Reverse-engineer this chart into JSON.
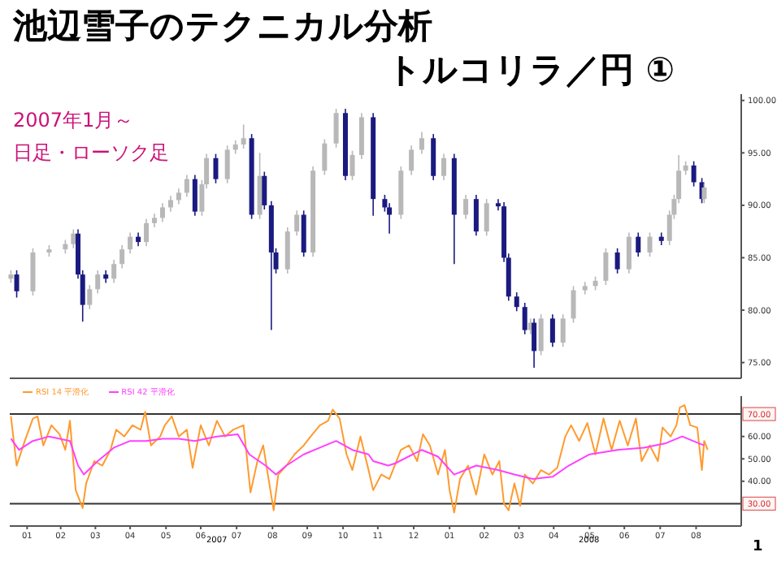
{
  "chart_data": [
    {
      "type": "candlestick",
      "title": "池辺雪子のテクニカル分析",
      "subtitle": "トルコリラ／円 ①",
      "annotations": [
        "2007年1月～",
        "日足・ローソク足"
      ],
      "x": [
        "2007-01-02",
        "2007-01-07",
        "2007-01-21",
        "2007-02-04",
        "2007-02-18",
        "2007-02-25",
        "2007-03-01",
        "2007-03-05",
        "2007-03-11",
        "2007-03-18",
        "2007-03-25",
        "2007-04-01",
        "2007-04-08",
        "2007-04-15",
        "2007-04-22",
        "2007-04-29",
        "2007-05-06",
        "2007-05-13",
        "2007-05-20",
        "2007-05-27",
        "2007-06-03",
        "2007-06-10",
        "2007-06-16",
        "2007-06-20",
        "2007-06-28",
        "2007-07-08",
        "2007-07-15",
        "2007-07-22",
        "2007-07-29",
        "2007-08-05",
        "2007-08-09",
        "2007-08-15",
        "2007-08-19",
        "2007-08-29",
        "2007-09-06",
        "2007-09-12",
        "2007-09-20",
        "2007-09-30",
        "2007-10-10",
        "2007-10-18",
        "2007-10-24",
        "2007-11-01",
        "2007-11-11",
        "2007-11-21",
        "2007-11-25",
        "2007-12-05",
        "2007-12-14",
        "2007-12-23",
        "2008-01-02",
        "2008-01-11",
        "2008-01-20",
        "2008-01-30",
        "2008-02-08",
        "2008-02-17",
        "2008-02-27",
        "2008-03-03",
        "2008-03-07",
        "2008-03-14",
        "2008-03-21",
        "2008-03-26",
        "2008-03-29",
        "2008-04-04",
        "2008-04-14",
        "2008-04-23",
        "2008-05-02",
        "2008-05-12",
        "2008-05-21",
        "2008-05-30",
        "2008-06-09",
        "2008-06-19",
        "2008-06-27",
        "2008-07-07",
        "2008-07-17",
        "2008-07-24",
        "2008-07-28",
        "2008-08-01",
        "2008-08-07",
        "2008-08-14",
        "2008-08-21",
        "2008-08-23"
      ],
      "ohlc": [
        [
          83.0,
          83.8,
          82.6,
          83.4
        ],
        [
          83.4,
          83.8,
          81.2,
          81.8
        ],
        [
          81.8,
          85.9,
          81.4,
          85.5
        ],
        [
          85.5,
          86.2,
          85.1,
          85.8
        ],
        [
          85.8,
          86.7,
          85.4,
          86.3
        ],
        [
          86.3,
          87.7,
          85.9,
          87.3
        ],
        [
          87.3,
          87.7,
          83.0,
          83.4
        ],
        [
          83.4,
          83.8,
          78.9,
          80.5
        ],
        [
          80.5,
          82.4,
          80.1,
          82.0
        ],
        [
          82.0,
          83.8,
          81.6,
          83.4
        ],
        [
          83.4,
          83.8,
          82.6,
          83.0
        ],
        [
          83.0,
          84.8,
          82.6,
          84.4
        ],
        [
          84.4,
          86.2,
          84.0,
          85.8
        ],
        [
          85.8,
          87.4,
          85.4,
          87.0
        ],
        [
          87.0,
          87.4,
          86.1,
          86.5
        ],
        [
          86.5,
          88.7,
          86.1,
          88.3
        ],
        [
          88.3,
          89.2,
          87.9,
          88.8
        ],
        [
          88.8,
          90.2,
          88.4,
          89.8
        ],
        [
          89.8,
          90.9,
          89.4,
          90.5
        ],
        [
          90.5,
          91.6,
          90.1,
          91.2
        ],
        [
          91.2,
          92.9,
          90.8,
          92.5
        ],
        [
          92.5,
          92.9,
          89.0,
          89.4
        ],
        [
          89.4,
          92.4,
          89.0,
          92.0
        ],
        [
          92.0,
          94.9,
          91.6,
          94.5
        ],
        [
          94.5,
          94.9,
          92.1,
          92.5
        ],
        [
          92.5,
          95.7,
          92.1,
          95.3
        ],
        [
          95.3,
          96.2,
          94.9,
          95.8
        ],
        [
          95.8,
          97.7,
          95.4,
          96.4
        ],
        [
          96.4,
          96.8,
          88.7,
          89.1
        ],
        [
          89.1,
          95.0,
          88.7,
          92.8
        ],
        [
          92.8,
          93.2,
          89.6,
          90.0
        ],
        [
          90.0,
          90.4,
          78.1,
          85.5
        ],
        [
          85.5,
          85.9,
          83.5,
          83.9
        ],
        [
          83.9,
          87.9,
          83.5,
          87.5
        ],
        [
          87.5,
          89.5,
          87.1,
          89.1
        ],
        [
          89.1,
          89.5,
          85.1,
          85.5
        ],
        [
          85.5,
          93.7,
          85.1,
          93.3
        ],
        [
          93.3,
          96.3,
          92.9,
          95.9
        ],
        [
          95.9,
          99.2,
          95.5,
          98.8
        ],
        [
          98.8,
          99.2,
          92.4,
          92.8
        ],
        [
          92.8,
          95.2,
          92.4,
          94.8
        ],
        [
          94.8,
          98.8,
          94.4,
          98.4
        ],
        [
          98.4,
          98.8,
          89.0,
          90.6
        ],
        [
          90.6,
          91.0,
          89.4,
          89.8
        ],
        [
          89.8,
          90.2,
          87.3,
          89.1
        ],
        [
          89.1,
          93.7,
          88.7,
          93.3
        ],
        [
          93.3,
          95.7,
          92.9,
          95.3
        ],
        [
          95.3,
          97.0,
          94.9,
          96.4
        ],
        [
          96.4,
          96.8,
          92.4,
          92.8
        ],
        [
          92.8,
          94.9,
          92.4,
          94.5
        ],
        [
          94.5,
          94.9,
          84.4,
          89.1
        ],
        [
          89.1,
          91.0,
          88.7,
          90.6
        ],
        [
          90.6,
          91.0,
          87.1,
          87.5
        ],
        [
          87.5,
          90.6,
          87.1,
          90.2
        ],
        [
          90.2,
          90.6,
          89.5,
          89.9
        ],
        [
          89.9,
          90.3,
          84.6,
          85.0
        ],
        [
          85.0,
          85.4,
          80.9,
          81.3
        ],
        [
          81.3,
          81.7,
          79.9,
          80.3
        ],
        [
          80.3,
          80.7,
          77.7,
          78.1
        ],
        [
          78.1,
          79.2,
          77.7,
          78.8
        ],
        [
          78.8,
          79.2,
          74.5,
          76.1
        ],
        [
          76.1,
          79.6,
          75.7,
          79.2
        ],
        [
          79.2,
          79.6,
          76.5,
          76.9
        ],
        [
          76.9,
          79.6,
          76.5,
          79.2
        ],
        [
          79.2,
          82.3,
          78.8,
          81.9
        ],
        [
          81.9,
          82.7,
          81.5,
          82.3
        ],
        [
          82.3,
          83.2,
          81.9,
          82.8
        ],
        [
          82.8,
          85.9,
          82.4,
          85.5
        ],
        [
          85.5,
          85.9,
          83.5,
          83.9
        ],
        [
          83.9,
          87.4,
          83.5,
          87.0
        ],
        [
          87.0,
          87.4,
          85.1,
          85.5
        ],
        [
          85.5,
          87.4,
          85.1,
          87.0
        ],
        [
          87.0,
          87.4,
          86.2,
          86.6
        ],
        [
          86.6,
          89.5,
          86.2,
          89.1
        ],
        [
          89.1,
          91.0,
          88.7,
          90.6
        ],
        [
          90.6,
          94.8,
          90.2,
          93.3
        ],
        [
          93.3,
          94.2,
          92.9,
          93.8
        ],
        [
          93.8,
          94.2,
          91.8,
          92.2
        ],
        [
          92.2,
          92.6,
          90.2,
          90.6
        ],
        [
          90.6,
          92.1,
          90.2,
          91.7
        ]
      ],
      "colors": [
        "#b8b8b8",
        "#1a1a80",
        "#b8b8b8",
        "#b8b8b8",
        "#b8b8b8",
        "#b8b8b8",
        "#1a1a80",
        "#1a1a80",
        "#b8b8b8",
        "#b8b8b8",
        "#1a1a80",
        "#b8b8b8",
        "#b8b8b8",
        "#b8b8b8",
        "#1a1a80",
        "#b8b8b8",
        "#b8b8b8",
        "#b8b8b8",
        "#b8b8b8",
        "#b8b8b8",
        "#b8b8b8",
        "#1a1a80",
        "#b8b8b8",
        "#b8b8b8",
        "#1a1a80",
        "#b8b8b8",
        "#b8b8b8",
        "#b8b8b8",
        "#1a1a80",
        "#b8b8b8",
        "#1a1a80",
        "#1a1a80",
        "#1a1a80",
        "#b8b8b8",
        "#b8b8b8",
        "#1a1a80",
        "#b8b8b8",
        "#b8b8b8",
        "#b8b8b8",
        "#1a1a80",
        "#b8b8b8",
        "#b8b8b8",
        "#1a1a80",
        "#1a1a80",
        "#1a1a80",
        "#b8b8b8",
        "#b8b8b8",
        "#b8b8b8",
        "#1a1a80",
        "#b8b8b8",
        "#1a1a80",
        "#b8b8b8",
        "#1a1a80",
        "#b8b8b8",
        "#1a1a80",
        "#1a1a80",
        "#1a1a80",
        "#1a1a80",
        "#1a1a80",
        "#b8b8b8",
        "#1a1a80",
        "#b8b8b8",
        "#1a1a80",
        "#b8b8b8",
        "#b8b8b8",
        "#b8b8b8",
        "#b8b8b8",
        "#b8b8b8",
        "#1a1a80",
        "#b8b8b8",
        "#1a1a80",
        "#b8b8b8",
        "#1a1a80",
        "#b8b8b8",
        "#b8b8b8",
        "#b8b8b8",
        "#b8b8b8",
        "#1a1a80",
        "#1a1a80",
        "#b8b8b8"
      ],
      "xlim": [
        "2007-01-01",
        "2008-09-24"
      ],
      "ylim": [
        73.5,
        100.6
      ],
      "yticks": [
        {
          "value": 75,
          "label": "75.00"
        },
        {
          "value": 80,
          "label": "80.00"
        },
        {
          "value": 85,
          "label": "85.00"
        },
        {
          "value": 90,
          "label": "90.00"
        },
        {
          "value": 95,
          "label": "95.00"
        },
        {
          "value": 100,
          "label": "100.00"
        }
      ],
      "tick_labels": "y"
    },
    {
      "type": "line",
      "legend": "top left",
      "series": [
        {
          "name": "RSI 14 平滑化",
          "color": "#ff9a2e",
          "x": [
            "2007-01-02",
            "2007-01-07",
            "2007-01-14",
            "2007-01-21",
            "2007-01-25",
            "2007-01-30",
            "2007-02-06",
            "2007-02-13",
            "2007-02-18",
            "2007-02-22",
            "2007-02-27",
            "2007-03-05",
            "2007-03-08",
            "2007-03-15",
            "2007-03-22",
            "2007-03-29",
            "2007-04-03",
            "2007-04-10",
            "2007-04-17",
            "2007-04-24",
            "2007-04-28",
            "2007-05-03",
            "2007-05-11",
            "2007-05-15",
            "2007-05-21",
            "2007-05-27",
            "2007-06-03",
            "2007-06-08",
            "2007-06-15",
            "2007-06-22",
            "2007-06-29",
            "2007-07-06",
            "2007-07-13",
            "2007-07-22",
            "2007-07-28",
            "2007-08-03",
            "2007-08-08",
            "2007-08-12",
            "2007-08-17",
            "2007-08-21",
            "2007-08-28",
            "2007-09-04",
            "2007-09-12",
            "2007-09-18",
            "2007-09-26",
            "2007-10-03",
            "2007-10-07",
            "2007-10-13",
            "2007-10-19",
            "2007-10-24",
            "2007-10-31",
            "2007-11-07",
            "2007-11-11",
            "2007-11-18",
            "2007-11-25",
            "2007-12-05",
            "2007-12-12",
            "2007-12-19",
            "2007-12-24",
            "2007-12-30",
            "2008-01-06",
            "2008-01-12",
            "2008-01-16",
            "2008-01-20",
            "2008-01-25",
            "2008-02-01",
            "2008-02-08",
            "2008-02-15",
            "2008-02-22",
            "2008-02-28",
            "2008-03-03",
            "2008-03-07",
            "2008-03-12",
            "2008-03-17",
            "2008-03-21",
            "2008-03-28",
            "2008-04-04",
            "2008-04-11",
            "2008-04-18",
            "2008-04-25",
            "2008-04-30",
            "2008-05-07",
            "2008-05-14",
            "2008-05-21",
            "2008-05-28",
            "2008-06-04",
            "2008-06-11",
            "2008-06-18",
            "2008-06-25",
            "2008-06-30",
            "2008-07-07",
            "2008-07-14",
            "2008-07-18",
            "2008-07-25",
            "2008-07-30",
            "2008-08-02",
            "2008-08-06",
            "2008-08-11",
            "2008-08-17",
            "2008-08-21",
            "2008-08-23",
            "2008-08-26"
          ],
          "values": [
            69,
            47,
            58,
            68,
            69,
            56,
            65,
            61,
            54,
            67,
            36,
            28,
            39,
            49,
            47,
            54,
            63,
            60,
            65,
            63,
            71,
            56,
            60,
            65,
            69,
            60,
            63,
            46,
            65,
            56,
            67,
            60,
            63,
            65,
            35,
            49,
            56,
            43,
            27,
            43,
            47,
            52,
            56,
            60,
            65,
            67,
            72,
            68,
            52,
            45,
            60,
            45,
            36,
            43,
            41,
            54,
            56,
            49,
            61,
            56,
            43,
            54,
            36,
            26,
            41,
            47,
            34,
            52,
            43,
            49,
            30,
            27,
            39,
            29,
            43,
            39,
            45,
            43,
            46,
            60,
            65,
            58,
            66,
            52,
            68,
            54,
            67,
            56,
            68,
            49,
            56,
            49,
            64,
            60,
            65,
            73,
            74,
            65,
            64,
            45,
            58,
            54
          ]
        },
        {
          "name": "RSI 42 平滑化",
          "color": "#ff40ff",
          "x": [
            "2007-01-02",
            "2007-01-09",
            "2007-01-21",
            "2007-02-04",
            "2007-02-22",
            "2007-03-01",
            "2007-03-06",
            "2007-03-18",
            "2007-04-01",
            "2007-04-15",
            "2007-04-29",
            "2007-05-13",
            "2007-05-27",
            "2007-06-10",
            "2007-06-29",
            "2007-07-17",
            "2007-07-27",
            "2007-08-10",
            "2007-08-19",
            "2007-08-28",
            "2007-09-12",
            "2007-09-26",
            "2007-10-10",
            "2007-10-24",
            "2007-11-07",
            "2007-11-11",
            "2007-11-24",
            "2007-11-30",
            "2007-12-23",
            "2008-01-06",
            "2008-01-20",
            "2008-02-08",
            "2008-02-27",
            "2008-03-12",
            "2008-03-28",
            "2008-04-14",
            "2008-04-28",
            "2008-05-16",
            "2008-06-09",
            "2008-07-02",
            "2008-07-21",
            "2008-08-04",
            "2008-08-18",
            "2008-08-23"
          ],
          "values": [
            59,
            54,
            58,
            60,
            58,
            47,
            43,
            49,
            55,
            58,
            58,
            59,
            59,
            58,
            60,
            61,
            52,
            47,
            43,
            47,
            52,
            55,
            58,
            54,
            52,
            49,
            47,
            48,
            54,
            51,
            43,
            47,
            45,
            43,
            41,
            42,
            47,
            52,
            54,
            55,
            57,
            60,
            57,
            56
          ]
        }
      ],
      "xlim": [
        "2007-01-01",
        "2008-09-24"
      ],
      "xticks": [
        {
          "value": "2007-01-16",
          "label": "01"
        },
        {
          "value": "2007-02-14",
          "label": "02"
        },
        {
          "value": "2007-03-16",
          "label": "03"
        },
        {
          "value": "2007-04-15",
          "label": "04"
        },
        {
          "value": "2007-05-16",
          "label": "05"
        },
        {
          "value": "2007-06-15",
          "label": "06"
        },
        {
          "value": "2007-07-16",
          "label": "07"
        },
        {
          "value": "2007-08-16",
          "label": "08"
        },
        {
          "value": "2007-09-15",
          "label": "09"
        },
        {
          "value": "2007-10-16",
          "label": "10"
        },
        {
          "value": "2007-11-15",
          "label": "11"
        },
        {
          "value": "2007-12-16",
          "label": "12"
        },
        {
          "value": "2008-01-16",
          "label": "01"
        },
        {
          "value": "2008-02-15",
          "label": "02"
        },
        {
          "value": "2008-03-16",
          "label": "03"
        },
        {
          "value": "2008-04-15",
          "label": "04"
        },
        {
          "value": "2008-05-16",
          "label": "05"
        },
        {
          "value": "2008-06-15",
          "label": "06"
        },
        {
          "value": "2008-07-16",
          "label": "07"
        },
        {
          "value": "2008-08-16",
          "label": "08"
        }
      ],
      "ylim": [
        20,
        78
      ],
      "yticks": [
        {
          "value": 40,
          "label": "40.00"
        },
        {
          "value": 50,
          "label": "50.00"
        },
        {
          "value": 60,
          "label": "60.00"
        }
      ],
      "ref_lines": [
        {
          "axis": "y",
          "value": 70,
          "label": "70.00",
          "color": "#333333"
        },
        {
          "axis": "y",
          "value": 30,
          "label": "30.00",
          "color": "#333333"
        }
      ],
      "annotations": [
        "2007",
        "2008",
        "1"
      ]
    }
  ]
}
